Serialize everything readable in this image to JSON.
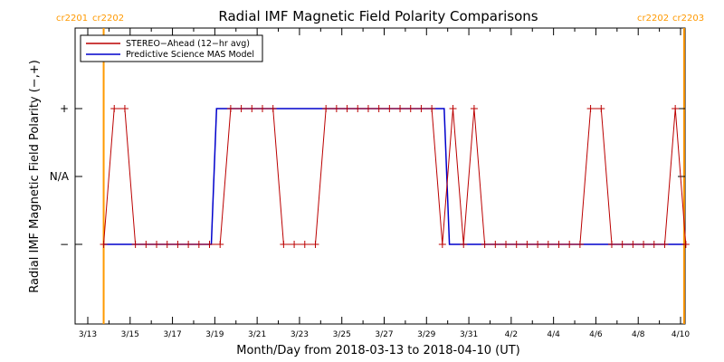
{
  "chart_data": {
    "type": "line",
    "title": "Radial IMF Magnetic Field Polarity Comparisons",
    "xlabel": "Month/Day from 2018-03-13 to 2018-04-10 (UT)",
    "ylabel": "Radial IMF Magnetic Field Polarity (−,+)",
    "xlim": [
      "2018-03-13",
      "2018-04-10"
    ],
    "ylim": [
      -2,
      2
    ],
    "x_ticks": [
      "3/13",
      "3/15",
      "3/17",
      "3/19",
      "3/21",
      "3/23",
      "3/25",
      "3/27",
      "3/29",
      "3/31",
      "4/2",
      "4/4",
      "4/6",
      "4/8",
      "4/10"
    ],
    "y_ticks": [
      {
        "value": 1,
        "label": "+"
      },
      {
        "value": 0,
        "label": "N/A"
      },
      {
        "value": -1,
        "label": "−"
      }
    ],
    "legend": {
      "position": "top-left",
      "entries": [
        {
          "name": "STEREO−Ahead (12−hr avg)",
          "color": "#bb0000"
        },
        {
          "name": "Predictive Science MAS Model",
          "color": "#0000cc"
        }
      ]
    },
    "annotations": [
      {
        "date": "2018-03-13T18:00",
        "labels": [
          "cr2201",
          "cr2202"
        ],
        "side": "left",
        "color": "#ff9900"
      },
      {
        "date": "2018-04-10T04:00",
        "labels": [
          "cr2202",
          "cr2203"
        ],
        "side": "right",
        "color": "#ff9900"
      }
    ],
    "series": [
      {
        "name": "STEREO−Ahead (12−hr avg)",
        "color": "#bb0000",
        "marker": "+",
        "x": [
          "2018-03-13T18:00",
          "2018-03-14T06:00",
          "2018-03-14T18:00",
          "2018-03-15T06:00",
          "2018-03-15T18:00",
          "2018-03-16T06:00",
          "2018-03-16T18:00",
          "2018-03-17T06:00",
          "2018-03-17T18:00",
          "2018-03-18T06:00",
          "2018-03-18T18:00",
          "2018-03-19T06:00",
          "2018-03-19T18:00",
          "2018-03-20T06:00",
          "2018-03-20T18:00",
          "2018-03-21T06:00",
          "2018-03-21T18:00",
          "2018-03-22T06:00",
          "2018-03-22T18:00",
          "2018-03-23T06:00",
          "2018-03-23T18:00",
          "2018-03-24T06:00",
          "2018-03-24T18:00",
          "2018-03-25T06:00",
          "2018-03-25T18:00",
          "2018-03-26T06:00",
          "2018-03-26T18:00",
          "2018-03-27T06:00",
          "2018-03-27T18:00",
          "2018-03-28T06:00",
          "2018-03-28T18:00",
          "2018-03-29T06:00",
          "2018-03-29T18:00",
          "2018-03-30T06:00",
          "2018-03-30T18:00",
          "2018-03-31T06:00",
          "2018-03-31T18:00",
          "2018-04-01T06:00",
          "2018-04-01T18:00",
          "2018-04-02T06:00",
          "2018-04-02T18:00",
          "2018-04-03T06:00",
          "2018-04-03T18:00",
          "2018-04-04T06:00",
          "2018-04-04T18:00",
          "2018-04-05T06:00",
          "2018-04-05T18:00",
          "2018-04-06T06:00",
          "2018-04-06T18:00",
          "2018-04-07T06:00",
          "2018-04-07T18:00",
          "2018-04-08T06:00",
          "2018-04-08T18:00",
          "2018-04-09T06:00",
          "2018-04-09T18:00",
          "2018-04-10T06:00"
        ],
        "y": [
          -1,
          1,
          1,
          -1,
          -1,
          -1,
          -1,
          -1,
          -1,
          -1,
          -1,
          -1,
          1,
          1,
          1,
          1,
          1,
          -1,
          -1,
          -1,
          -1,
          1,
          1,
          1,
          1,
          1,
          1,
          1,
          1,
          1,
          1,
          1,
          -1,
          1,
          -1,
          1,
          -1,
          -1,
          -1,
          -1,
          -1,
          -1,
          -1,
          -1,
          -1,
          -1,
          1,
          1,
          -1,
          -1,
          -1,
          -1,
          -1,
          -1,
          1,
          -1
        ]
      },
      {
        "name": "Predictive Science MAS Model",
        "color": "#0000cc",
        "marker": "none",
        "x": [
          "2018-03-13T18:00",
          "2018-03-18T20:00",
          "2018-03-19T02:00",
          "2018-03-29T20:00",
          "2018-03-30T02:00",
          "2018-04-10T04:00"
        ],
        "y": [
          -1,
          -1,
          1,
          1,
          -1,
          -1
        ]
      }
    ]
  }
}
